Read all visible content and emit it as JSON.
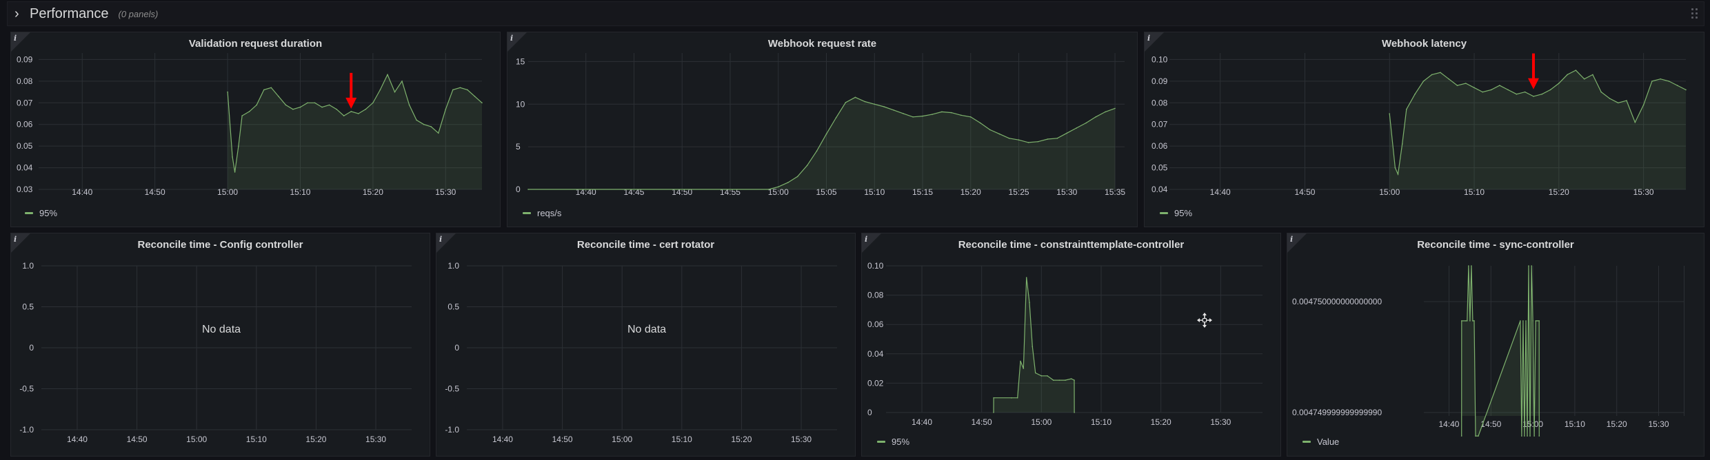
{
  "row": {
    "title": "Performance",
    "count_label": "(0 panels)"
  },
  "colors": {
    "series": "#7eb26d",
    "grid": "#2c3035",
    "axis_text": "#c7c7d1",
    "annotation": "#ff0000"
  },
  "panels": {
    "validation_duration": {
      "title": "Validation request duration",
      "legend": "95%"
    },
    "webhook_rate": {
      "title": "Webhook request rate",
      "legend": "reqs/s"
    },
    "webhook_latency": {
      "title": "Webhook latency",
      "legend": "95%"
    },
    "reconcile_config": {
      "title": "Reconcile time - Config controller",
      "no_data": "No data"
    },
    "reconcile_cert": {
      "title": "Reconcile time - cert rotator",
      "no_data": "No data"
    },
    "reconcile_constraint": {
      "title": "Reconcile time - constrainttemplate-controller",
      "legend": "95%"
    },
    "reconcile_sync": {
      "title": "Reconcile time - sync-controller",
      "legend": "Value"
    }
  },
  "chart_data": [
    {
      "id": "validation_duration",
      "type": "area",
      "title": "Validation request duration",
      "xticks": [
        "14:40",
        "14:50",
        "15:00",
        "15:10",
        "15:20",
        "15:30"
      ],
      "yticks": [
        "0.03",
        "0.04",
        "0.05",
        "0.06",
        "0.07",
        "0.08",
        "0.09"
      ],
      "xlim": [
        "14:34",
        "15:35"
      ],
      "ylim": [
        0.03,
        0.093
      ],
      "grid": true,
      "legend_position": "bottom-left",
      "series": [
        {
          "name": "95%",
          "x": [
            "15:00",
            "15:00:40",
            "15:01",
            "15:01:30",
            "15:02",
            "15:03",
            "15:04",
            "15:05",
            "15:06",
            "15:07",
            "15:08",
            "15:09",
            "15:10",
            "15:11",
            "15:12",
            "15:13",
            "15:14",
            "15:15",
            "15:16",
            "15:17",
            "15:18",
            "15:19",
            "15:20",
            "15:21",
            "15:22",
            "15:23",
            "15:24",
            "15:25",
            "15:26",
            "15:27",
            "15:28",
            "15:29",
            "15:30",
            "15:31",
            "15:32",
            "15:33",
            "15:34",
            "15:35"
          ],
          "values": [
            0.075,
            0.045,
            0.038,
            0.05,
            0.064,
            0.066,
            0.069,
            0.076,
            0.077,
            0.073,
            0.069,
            0.067,
            0.068,
            0.07,
            0.07,
            0.068,
            0.069,
            0.067,
            0.064,
            0.066,
            0.065,
            0.067,
            0.07,
            0.076,
            0.083,
            0.075,
            0.08,
            0.069,
            0.062,
            0.06,
            0.059,
            0.056,
            0.067,
            0.076,
            0.077,
            0.076,
            0.073,
            0.07
          ]
        }
      ],
      "annotations": [
        {
          "type": "arrow",
          "x": "15:17",
          "y": 0.066
        }
      ]
    },
    {
      "id": "webhook_rate",
      "type": "area",
      "title": "Webhook request rate",
      "xticks": [
        "14:40",
        "14:45",
        "14:50",
        "14:55",
        "15:00",
        "15:05",
        "15:10",
        "15:15",
        "15:20",
        "15:25",
        "15:30",
        "15:35"
      ],
      "yticks": [
        "0",
        "5",
        "10",
        "15"
      ],
      "xlim": [
        "14:34",
        "15:36"
      ],
      "ylim": [
        0,
        16
      ],
      "grid": true,
      "legend_position": "bottom-left",
      "series": [
        {
          "name": "reqs/s",
          "x": [
            "14:34",
            "14:59",
            "15:00",
            "15:01",
            "15:02",
            "15:03",
            "15:04",
            "15:05",
            "15:06",
            "15:07",
            "15:08",
            "15:09",
            "15:10",
            "15:11",
            "15:12",
            "15:13",
            "15:14",
            "15:15",
            "15:16",
            "15:17",
            "15:18",
            "15:19",
            "15:20",
            "15:21",
            "15:22",
            "15:23",
            "15:24",
            "15:25",
            "15:26",
            "15:27",
            "15:28",
            "15:29",
            "15:30",
            "15:31",
            "15:32",
            "15:33",
            "15:34",
            "15:35"
          ],
          "values": [
            0,
            0,
            0.3,
            0.8,
            1.5,
            2.8,
            4.5,
            6.5,
            8.4,
            10.2,
            10.8,
            10.3,
            10.0,
            9.7,
            9.3,
            8.9,
            8.5,
            8.6,
            8.8,
            9.1,
            9.0,
            8.7,
            8.5,
            7.8,
            7.0,
            6.5,
            6.0,
            5.8,
            5.5,
            5.6,
            5.9,
            6.0,
            6.6,
            7.2,
            7.8,
            8.5,
            9.1,
            9.5
          ]
        }
      ]
    },
    {
      "id": "webhook_latency",
      "type": "area",
      "title": "Webhook latency",
      "xticks": [
        "14:40",
        "14:50",
        "15:00",
        "15:10",
        "15:20",
        "15:30"
      ],
      "yticks": [
        "0.04",
        "0.05",
        "0.06",
        "0.07",
        "0.08",
        "0.09",
        "0.10"
      ],
      "xlim": [
        "14:34",
        "15:35"
      ],
      "ylim": [
        0.04,
        0.103
      ],
      "grid": true,
      "legend_position": "bottom-left",
      "series": [
        {
          "name": "95%",
          "x": [
            "15:00",
            "15:00:40",
            "15:01",
            "15:01:30",
            "15:02",
            "15:03",
            "15:04",
            "15:05",
            "15:06",
            "15:07",
            "15:08",
            "15:09",
            "15:10",
            "15:11",
            "15:12",
            "15:13",
            "15:14",
            "15:15",
            "15:16",
            "15:17",
            "15:18",
            "15:19",
            "15:20",
            "15:21",
            "15:22",
            "15:23",
            "15:24",
            "15:25",
            "15:26",
            "15:27",
            "15:28",
            "15:29",
            "15:30",
            "15:31",
            "15:32",
            "15:33",
            "15:34",
            "15:35"
          ],
          "values": [
            0.075,
            0.05,
            0.047,
            0.061,
            0.077,
            0.084,
            0.09,
            0.093,
            0.094,
            0.091,
            0.088,
            0.089,
            0.087,
            0.085,
            0.086,
            0.088,
            0.086,
            0.084,
            0.085,
            0.083,
            0.084,
            0.086,
            0.089,
            0.093,
            0.095,
            0.091,
            0.093,
            0.085,
            0.082,
            0.08,
            0.081,
            0.071,
            0.079,
            0.09,
            0.091,
            0.09,
            0.088,
            0.086
          ]
        }
      ],
      "annotations": [
        {
          "type": "arrow",
          "x": "15:17",
          "y": 0.085
        }
      ]
    },
    {
      "id": "reconcile_config",
      "type": "line",
      "title": "Reconcile time - Config controller",
      "xticks": [
        "14:40",
        "14:50",
        "15:00",
        "15:10",
        "15:20",
        "15:30"
      ],
      "yticks": [
        "-1.0",
        "-0.5",
        "0",
        "0.5",
        "1.0"
      ],
      "grid": true,
      "series": []
    },
    {
      "id": "reconcile_cert",
      "type": "line",
      "title": "Reconcile time - cert rotator",
      "xticks": [
        "14:40",
        "14:50",
        "15:00",
        "15:10",
        "15:20",
        "15:30"
      ],
      "yticks": [
        "-1.0",
        "-0.5",
        "0",
        "0.5",
        "1.0"
      ],
      "grid": true,
      "series": []
    },
    {
      "id": "reconcile_constraint",
      "type": "area",
      "title": "Reconcile time - constrainttemplate-controller",
      "xticks": [
        "14:40",
        "14:50",
        "15:00",
        "15:10",
        "15:20",
        "15:30"
      ],
      "yticks": [
        "0",
        "0.02",
        "0.04",
        "0.06",
        "0.08",
        "0.10"
      ],
      "xlim": [
        "14:34",
        "15:37"
      ],
      "ylim": [
        0,
        0.1
      ],
      "grid": true,
      "legend_position": "bottom-left",
      "series": [
        {
          "name": "95%",
          "x": [
            "14:52",
            "14:52:01",
            "14:55",
            "14:56",
            "14:56:30",
            "14:57",
            "14:57:30",
            "14:58",
            "14:58:30",
            "14:59",
            "15:00",
            "15:01",
            "15:02",
            "15:03",
            "15:04",
            "15:05",
            "15:05:30",
            "15:05:31"
          ],
          "values": [
            0,
            0.01,
            0.01,
            0.01,
            0.035,
            0.03,
            0.092,
            0.075,
            0.045,
            0.027,
            0.025,
            0.025,
            0.022,
            0.022,
            0.022,
            0.023,
            0.022,
            0
          ]
        }
      ]
    },
    {
      "id": "reconcile_sync",
      "type": "area",
      "title": "Reconcile time - sync-controller",
      "xticks": [
        "14:40",
        "14:50",
        "15:00",
        "15:10",
        "15:20",
        "15:30"
      ],
      "yticks": [
        "0.004749999999999990",
        "0.004750000000000000"
      ],
      "xlim": [
        "14:34",
        "15:36"
      ],
      "ylim": [
        0.004749999999999983,
        0.004750000000000009
      ],
      "grid": true,
      "legend_position": "bottom-left",
      "series": [
        {
          "name": "Value",
          "x": [
            "14:43",
            "14:43:01",
            "14:44",
            "14:44:20",
            "14:44:40",
            "14:45",
            "14:45:20",
            "14:45:40",
            "14:46",
            "14:46:20",
            "14:47",
            "14:57",
            "14:57:20",
            "14:57:40",
            "14:58",
            "14:58:20",
            "14:58:40",
            "14:59",
            "14:59:20",
            "14:59:40",
            "15:00",
            "15:00:20",
            "15:00:40",
            "15:01",
            "15:01:30",
            "15:01:31"
          ],
          "values": [
            0.00474999999999998,
            0.00475,
            0.00475,
            0.00475,
            0.004750000000000009,
            0.00475,
            0.004750000000000009,
            0.00475,
            0.00475,
            0.00474999999999998,
            0.00474999999999998,
            0.00475,
            0.00474999999999998,
            0.00475,
            0.00474999999999998,
            0.00475,
            0.00474999999999998,
            0.004750000000000009,
            0.00474999999999998,
            0.004750000000000009,
            0.00475,
            0.00474999999999998,
            0.00475,
            0.00475,
            0.00475,
            0.00474999999999998
          ]
        }
      ]
    }
  ]
}
